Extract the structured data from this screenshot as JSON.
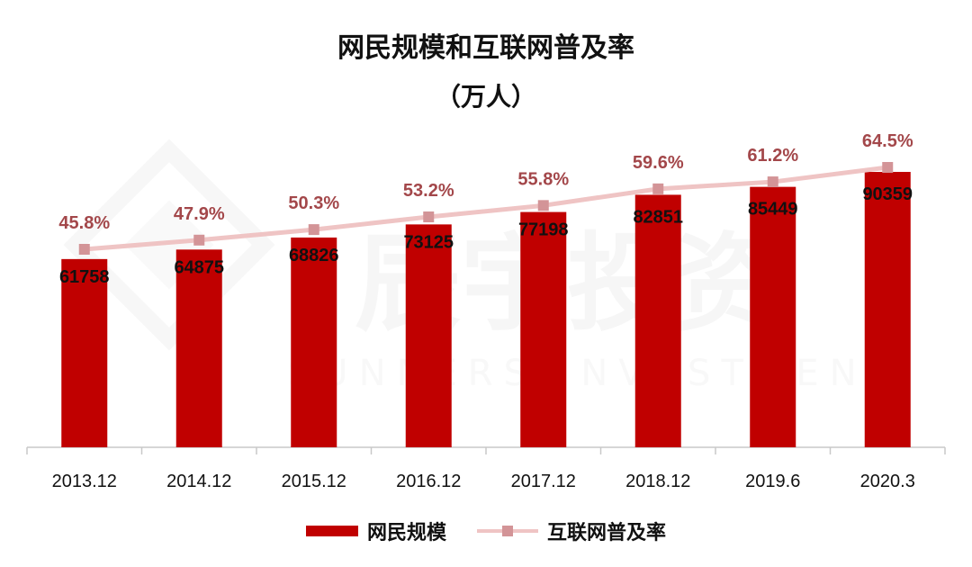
{
  "chart_data": {
    "type": "bar",
    "title_lines": [
      "网民规模和互联网普及率",
      "（万人）"
    ],
    "categories": [
      "2013.12",
      "2014.12",
      "2015.12",
      "2016.12",
      "2017.12",
      "2018.12",
      "2019.6",
      "2020.3"
    ],
    "series": [
      {
        "name": "网民规模",
        "type": "bar",
        "values": [
          61758,
          64875,
          68826,
          73125,
          77198,
          82851,
          85449,
          90359
        ],
        "value_labels": [
          "61758",
          "64875",
          "68826",
          "73125",
          "77198",
          "82851",
          "85449",
          "90359"
        ],
        "color": "#c00000"
      },
      {
        "name": "互联网普及率",
        "type": "line",
        "values": [
          45.8,
          47.9,
          50.3,
          53.2,
          55.8,
          59.6,
          61.2,
          64.5
        ],
        "value_labels": [
          "45.8%",
          "47.9%",
          "50.3%",
          "53.2%",
          "55.8%",
          "59.6%",
          "61.2%",
          "64.5%"
        ],
        "line_color": "#efc4c4",
        "marker_color": "#d39497",
        "label_color": "#a3474a"
      }
    ],
    "watermark_text": [
      "辰宇投资",
      "SUNNERS INVESTMENT"
    ]
  }
}
